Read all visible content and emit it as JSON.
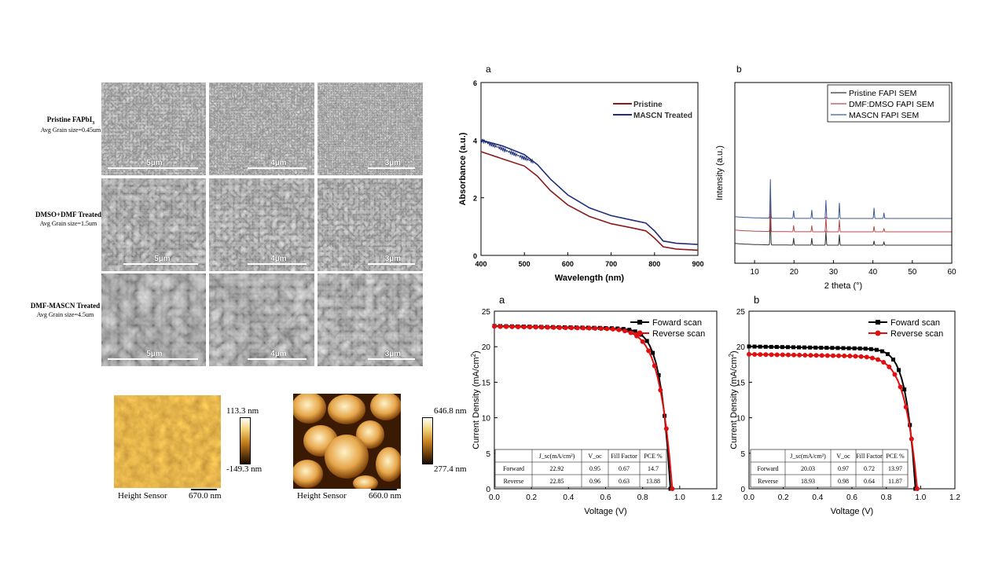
{
  "sem": {
    "rows": [
      {
        "title": "Pristine FAPbI",
        "sub": "3",
        "grain": "Avg Grain size=0.45um",
        "scales": [
          "5µm",
          "4µm",
          "3µm"
        ],
        "tone": "fine"
      },
      {
        "title": "DMSO+DMF Treated",
        "sub": "",
        "grain": "Avg Grain size=1.5um",
        "scales": [
          "5µm",
          "4µm",
          "3µm"
        ],
        "tone": "mid"
      },
      {
        "title": "DMF-MASCN  Treated",
        "sub": "",
        "grain": "Avg Grain size=4.5um",
        "scales": [
          "5µm",
          "4µm",
          "3µm"
        ],
        "tone": "large"
      }
    ]
  },
  "afm": [
    {
      "max": "113.3 nm",
      "min": "-149.3 nm",
      "sensor": "Height Sensor",
      "scale": "670.0 nm"
    },
    {
      "max": "646.8 nm",
      "min": "277.4 nm",
      "sensor": "Height Sensor",
      "scale": "660.0 nm"
    }
  ],
  "chart_data": [
    {
      "panel": "a",
      "type": "line",
      "xlabel": "Wavelength (nm)",
      "ylabel": "Absorbance (a.u.)",
      "xlim": [
        400,
        900
      ],
      "ylim": [
        0,
        6
      ],
      "xticks": [
        400,
        500,
        600,
        700,
        800,
        900
      ],
      "yticks": [
        0,
        2,
        4,
        6
      ],
      "legend_position": "top-right",
      "x": [
        400,
        450,
        500,
        530,
        560,
        600,
        650,
        700,
        750,
        780,
        800,
        820,
        850,
        900
      ],
      "series": [
        {
          "name": "Pristine",
          "color": "#8b1a1a",
          "values": [
            3.6,
            3.35,
            3.1,
            2.75,
            2.25,
            1.75,
            1.35,
            1.1,
            0.95,
            0.85,
            0.6,
            0.3,
            0.22,
            0.18
          ]
        },
        {
          "name": "MASCN Treated",
          "color": "#1f2e7a",
          "values": [
            4.0,
            3.8,
            3.5,
            3.15,
            2.65,
            2.1,
            1.65,
            1.38,
            1.22,
            1.12,
            0.85,
            0.5,
            0.42,
            0.38
          ]
        }
      ]
    },
    {
      "panel": "b",
      "type": "line",
      "xlabel": "2 theta (°)",
      "ylabel": "Intensity (a.u.)",
      "xlim": [
        5,
        60
      ],
      "xticks": [
        10,
        20,
        30,
        40,
        50,
        60
      ],
      "legend_position": "top-right",
      "peaks": [
        14.0,
        19.9,
        24.5,
        28.1,
        31.5,
        40.3,
        42.8
      ],
      "series": [
        {
          "name": "Pristine FAPI SEM",
          "color": "#333333",
          "peak_heights": [
            4.5,
            1.0,
            1.0,
            2.0,
            1.5,
            0.6,
            0.5
          ]
        },
        {
          "name": "DMF:DMSO FAPI SEM",
          "color": "#b84a4a",
          "peak_heights": [
            5.0,
            0.9,
            0.9,
            2.1,
            1.7,
            0.8,
            0.5
          ]
        },
        {
          "name": "MASCN FAPI SEM",
          "color": "#3c5a96",
          "peak_heights": [
            5.5,
            1.1,
            1.2,
            2.6,
            2.2,
            1.5,
            0.8
          ]
        }
      ]
    },
    {
      "panel": "a",
      "type": "line",
      "xlabel": "Voltage (V)",
      "ylabel": "Current Density (mA/cm2)",
      "xlim": [
        0,
        1.2
      ],
      "ylim": [
        0,
        25
      ],
      "xticks": [
        0.0,
        0.2,
        0.4,
        0.6,
        0.8,
        1.0,
        1.2
      ],
      "yticks": [
        0,
        5,
        10,
        15,
        20,
        25
      ],
      "legend_position": "top-right",
      "series": [
        {
          "name": "Foward scan",
          "color": "#000000",
          "marker": "square",
          "jsc": 22.92,
          "voc": 0.95,
          "ff": 0.67
        },
        {
          "name": "Reverse scan",
          "color": "#e01010",
          "marker": "circle",
          "jsc": 22.85,
          "voc": 0.96,
          "ff": 0.63
        }
      ],
      "table": {
        "headers": [
          "",
          "J_sc(mA/cm²)",
          "V_oc",
          "Fill Factor",
          "PCE %"
        ],
        "rows": [
          [
            "Forward",
            "22.92",
            "0.95",
            "0.67",
            "14.7"
          ],
          [
            "Reverse",
            "22.85",
            "0.96",
            "0.63",
            "13.88"
          ]
        ]
      }
    },
    {
      "panel": "b",
      "type": "line",
      "xlabel": "Voltage (V)",
      "ylabel": "Current Density (mA/cm2)",
      "xlim": [
        0,
        1.2
      ],
      "ylim": [
        0,
        25
      ],
      "xticks": [
        0.0,
        0.2,
        0.4,
        0.6,
        0.8,
        1.0,
        1.2
      ],
      "yticks": [
        0,
        5,
        10,
        15,
        20,
        25
      ],
      "legend_position": "top-right",
      "series": [
        {
          "name": "Foward scan",
          "color": "#000000",
          "marker": "square",
          "jsc": 20.03,
          "voc": 0.97,
          "ff": 0.72
        },
        {
          "name": "Reverse scan",
          "color": "#e01010",
          "marker": "circle",
          "jsc": 18.93,
          "voc": 0.98,
          "ff": 0.64
        }
      ],
      "table": {
        "headers": [
          "",
          "J_sc(mA/cm²)",
          "V_oc",
          "Fill Factor",
          "PCE %"
        ],
        "rows": [
          [
            "Forward",
            "20.03",
            "0.97",
            "0.72",
            "13.97"
          ],
          [
            "Reverse",
            "18.93",
            "0.98",
            "0.64",
            "11.87"
          ]
        ]
      }
    }
  ]
}
